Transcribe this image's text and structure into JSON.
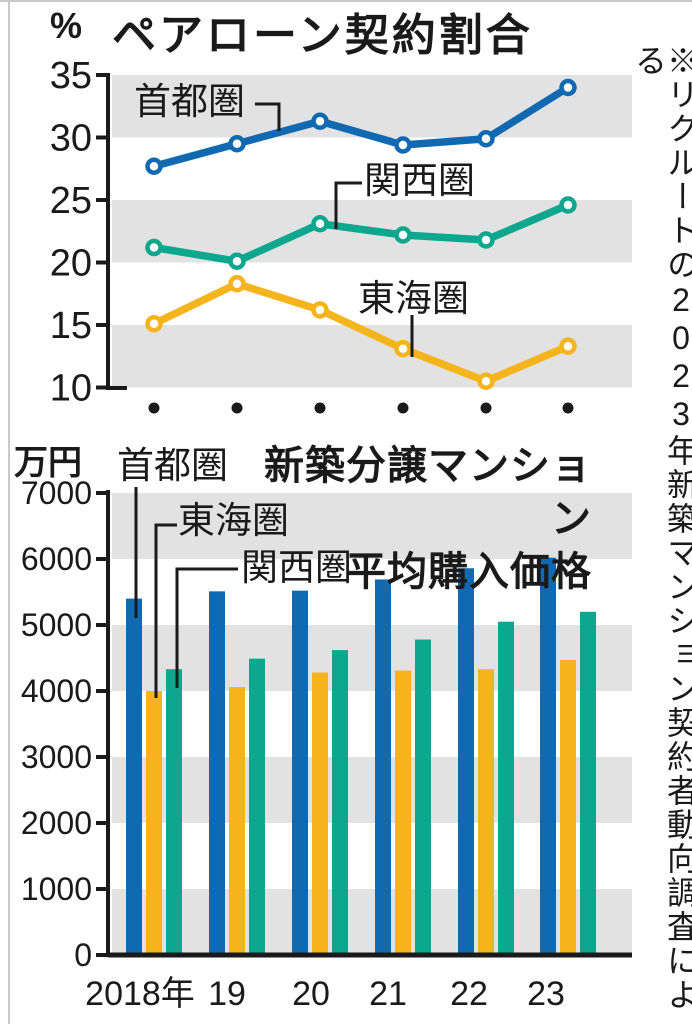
{
  "note": "※リクルートの2023年新築マンション契約者動向調査による",
  "colors": {
    "shutoken": "#1169b2",
    "kansai": "#0ca78e",
    "tokai": "#f5b31c",
    "band": "#e2e2e2",
    "ink": "#1a1a1a"
  },
  "chart_data": [
    {
      "type": "line",
      "title": "ペアローン契約割合",
      "unit": "%",
      "categories": [
        "2018年",
        "19",
        "20",
        "21",
        "22",
        "23"
      ],
      "ylim": [
        10,
        35
      ],
      "yticks": [
        35,
        30,
        25,
        20,
        15,
        10
      ],
      "grid": "banded-5pct",
      "legend_position": "inline-labels",
      "series": [
        {
          "name": "首都圏",
          "color": "#1169b2",
          "values": [
            27.7,
            29.5,
            31.3,
            29.4,
            29.9,
            34.0
          ]
        },
        {
          "name": "関西圏",
          "color": "#0ca78e",
          "values": [
            21.2,
            20.1,
            23.1,
            22.2,
            21.8,
            24.6
          ]
        },
        {
          "name": "東海圏",
          "color": "#f5b31c",
          "values": [
            15.1,
            18.3,
            16.2,
            13.1,
            10.5,
            13.3
          ]
        }
      ]
    },
    {
      "type": "bar",
      "title": "新築分譲マンション平均購入価格",
      "title_line1": "新築分譲マンション",
      "title_line2": "平均購入価格",
      "unit": "万円",
      "categories": [
        "2018年",
        "19",
        "20",
        "21",
        "22",
        "23"
      ],
      "ylim": [
        0,
        7000
      ],
      "yticks": [
        7000,
        6000,
        5000,
        4000,
        3000,
        2000,
        1000,
        0
      ],
      "grid": "banded-1000",
      "legend_position": "inline-labels",
      "series": [
        {
          "name": "首都圏",
          "color": "#1169b2",
          "values": [
            5400,
            5510,
            5520,
            5690,
            5860,
            6020
          ]
        },
        {
          "name": "東海圏",
          "color": "#f5b31c",
          "values": [
            4000,
            4060,
            4280,
            4310,
            4330,
            4470
          ]
        },
        {
          "name": "関西圏",
          "color": "#0ca78e",
          "values": [
            4330,
            4490,
            4620,
            4780,
            5050,
            5200
          ]
        }
      ]
    }
  ]
}
